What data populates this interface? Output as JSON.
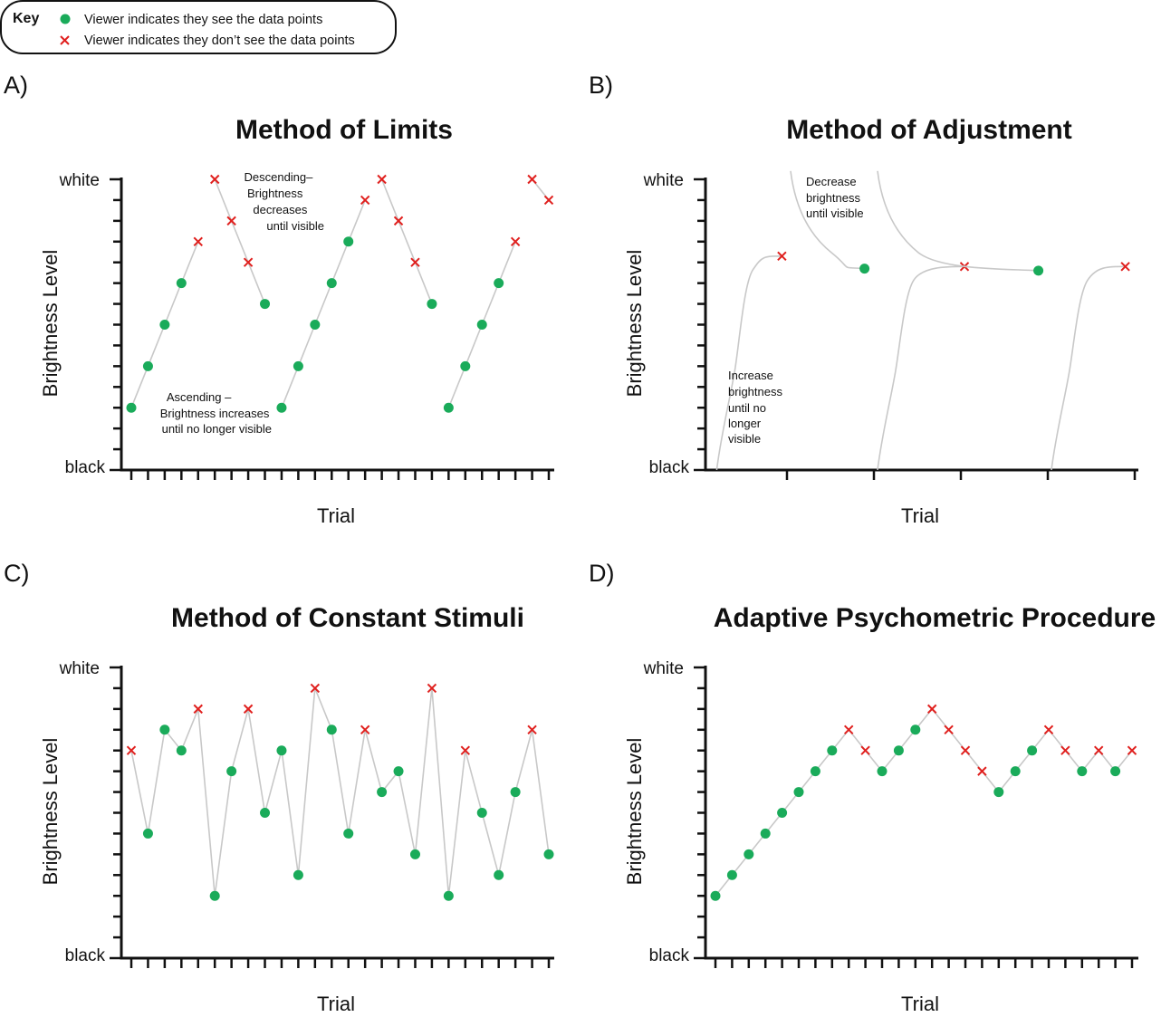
{
  "key": {
    "title": "Key",
    "seen_label": "Viewer indicates they see the data points",
    "unseen_label": "Viewer indicates they don’t see the data points"
  },
  "colors": {
    "seen": "#1aab5a",
    "unseen": "#e0201e",
    "line": "#c8c8c8",
    "axis": "#111111"
  },
  "chart_data": [
    {
      "panel": "A)",
      "title": "Method of Limits",
      "type": "line",
      "xlabel": "Trial",
      "ylabel": "Brightness Level",
      "y_top_label": "white",
      "y_bottom_label": "black",
      "x_ticks": 26,
      "y_ticks": 15,
      "ylim": [
        0,
        14
      ],
      "annotations": [
        {
          "id": "descending",
          "lines": [
            "Descending–",
            "Brightness",
            "decreases",
            "until visible"
          ]
        },
        {
          "id": "ascending",
          "lines": [
            "Ascending –",
            "Brightness increases",
            "until no longer visible"
          ]
        }
      ],
      "series": [
        {
          "points": [
            {
              "x": 1,
              "y": 3,
              "seen": true
            },
            {
              "x": 2,
              "y": 5,
              "seen": true
            },
            {
              "x": 3,
              "y": 7,
              "seen": true
            },
            {
              "x": 4,
              "y": 9,
              "seen": true
            },
            {
              "x": 5,
              "y": 11,
              "seen": false
            }
          ]
        },
        {
          "points": [
            {
              "x": 6,
              "y": 14,
              "seen": false
            },
            {
              "x": 7,
              "y": 12,
              "seen": false
            },
            {
              "x": 8,
              "y": 10,
              "seen": false
            },
            {
              "x": 9,
              "y": 8,
              "seen": true
            }
          ]
        },
        {
          "points": [
            {
              "x": 10,
              "y": 3,
              "seen": true
            },
            {
              "x": 11,
              "y": 5,
              "seen": true
            },
            {
              "x": 12,
              "y": 7,
              "seen": true
            },
            {
              "x": 13,
              "y": 9,
              "seen": true
            },
            {
              "x": 14,
              "y": 11,
              "seen": true
            },
            {
              "x": 15,
              "y": 13,
              "seen": false
            }
          ]
        },
        {
          "points": [
            {
              "x": 16,
              "y": 14,
              "seen": false
            },
            {
              "x": 17,
              "y": 12,
              "seen": false
            },
            {
              "x": 18,
              "y": 10,
              "seen": false
            },
            {
              "x": 19,
              "y": 8,
              "seen": true
            }
          ]
        },
        {
          "points": [
            {
              "x": 20,
              "y": 3,
              "seen": true
            },
            {
              "x": 21,
              "y": 5,
              "seen": true
            },
            {
              "x": 22,
              "y": 7,
              "seen": true
            },
            {
              "x": 23,
              "y": 9,
              "seen": true
            },
            {
              "x": 24,
              "y": 11,
              "seen": false
            }
          ]
        },
        {
          "points": [
            {
              "x": 25,
              "y": 14,
              "seen": false
            },
            {
              "x": 26,
              "y": 13,
              "seen": false
            }
          ]
        }
      ]
    },
    {
      "panel": "B)",
      "title": "Method of Adjustment",
      "type": "line",
      "xlabel": "Trial",
      "ylabel": "Brightness Level",
      "y_top_label": "white",
      "y_bottom_label": "black",
      "x_ticks": 5,
      "y_ticks": 15,
      "ylim": [
        0,
        14
      ],
      "annotations": [
        {
          "id": "decrease",
          "lines": [
            "Decrease",
            "brightness",
            "until visible"
          ]
        },
        {
          "id": "increase",
          "lines": [
            "Increase",
            "brightness",
            "until no",
            "longer",
            "visible"
          ]
        }
      ],
      "curves": [
        {
          "start": [
            0.15,
            0.0
          ],
          "end": [
            0.9,
            10.3
          ],
          "end_seen": false
        },
        {
          "start": [
            1.0,
            14.4
          ],
          "end": [
            1.85,
            9.7
          ],
          "end_seen": true
        },
        {
          "start": [
            2.0,
            0.0
          ],
          "end": [
            3.0,
            9.8
          ],
          "end_seen": false
        },
        {
          "start": [
            2.0,
            14.4
          ],
          "end": [
            3.85,
            9.6
          ],
          "end_seen": true
        },
        {
          "start": [
            4.0,
            0.0
          ],
          "end": [
            4.85,
            9.8
          ],
          "end_seen": false
        }
      ]
    },
    {
      "panel": "C)",
      "title": "Method of Constant Stimuli",
      "type": "line",
      "xlabel": "Trial",
      "ylabel": "Brightness Level",
      "y_top_label": "white",
      "y_bottom_label": "black",
      "x_ticks": 26,
      "y_ticks": 15,
      "ylim": [
        0,
        14
      ],
      "series": [
        {
          "points": [
            {
              "x": 1,
              "y": 10,
              "seen": false
            },
            {
              "x": 2,
              "y": 6,
              "seen": true
            },
            {
              "x": 3,
              "y": 11,
              "seen": true
            },
            {
              "x": 4,
              "y": 10,
              "seen": true
            },
            {
              "x": 5,
              "y": 12,
              "seen": false
            },
            {
              "x": 6,
              "y": 3,
              "seen": true
            },
            {
              "x": 7,
              "y": 9,
              "seen": true
            },
            {
              "x": 8,
              "y": 12,
              "seen": false
            },
            {
              "x": 9,
              "y": 7,
              "seen": true
            },
            {
              "x": 10,
              "y": 10,
              "seen": true
            },
            {
              "x": 11,
              "y": 4,
              "seen": true
            },
            {
              "x": 12,
              "y": 13,
              "seen": false
            },
            {
              "x": 13,
              "y": 11,
              "seen": true
            },
            {
              "x": 14,
              "y": 6,
              "seen": true
            },
            {
              "x": 15,
              "y": 11,
              "seen": false
            },
            {
              "x": 16,
              "y": 8,
              "seen": true
            },
            {
              "x": 17,
              "y": 9,
              "seen": true
            },
            {
              "x": 18,
              "y": 5,
              "seen": true
            },
            {
              "x": 19,
              "y": 13,
              "seen": false
            },
            {
              "x": 20,
              "y": 3,
              "seen": true
            },
            {
              "x": 21,
              "y": 10,
              "seen": false
            },
            {
              "x": 22,
              "y": 7,
              "seen": true
            },
            {
              "x": 23,
              "y": 4,
              "seen": true
            },
            {
              "x": 24,
              "y": 8,
              "seen": true
            },
            {
              "x": 25,
              "y": 11,
              "seen": false
            },
            {
              "x": 26,
              "y": 5,
              "seen": true
            }
          ]
        }
      ]
    },
    {
      "panel": "D)",
      "title": "Adaptive Psychometric Procedure",
      "type": "line",
      "xlabel": "Trial",
      "ylabel": "Brightness Level",
      "y_top_label": "white",
      "y_bottom_label": "black",
      "x_ticks": 26,
      "y_ticks": 15,
      "ylim": [
        0,
        14
      ],
      "series": [
        {
          "points": [
            {
              "x": 1,
              "y": 3,
              "seen": true
            },
            {
              "x": 2,
              "y": 4,
              "seen": true
            },
            {
              "x": 3,
              "y": 5,
              "seen": true
            },
            {
              "x": 4,
              "y": 6,
              "seen": true
            },
            {
              "x": 5,
              "y": 7,
              "seen": true
            },
            {
              "x": 6,
              "y": 8,
              "seen": true
            },
            {
              "x": 7,
              "y": 9,
              "seen": true
            },
            {
              "x": 8,
              "y": 10,
              "seen": true
            },
            {
              "x": 9,
              "y": 11,
              "seen": false
            },
            {
              "x": 10,
              "y": 10,
              "seen": false
            },
            {
              "x": 11,
              "y": 9,
              "seen": true
            },
            {
              "x": 12,
              "y": 10,
              "seen": true
            },
            {
              "x": 13,
              "y": 11,
              "seen": true
            },
            {
              "x": 14,
              "y": 12,
              "seen": false
            },
            {
              "x": 15,
              "y": 11,
              "seen": false
            },
            {
              "x": 16,
              "y": 10,
              "seen": false
            },
            {
              "x": 17,
              "y": 9,
              "seen": false
            },
            {
              "x": 18,
              "y": 8,
              "seen": true
            },
            {
              "x": 19,
              "y": 9,
              "seen": true
            },
            {
              "x": 20,
              "y": 10,
              "seen": true
            },
            {
              "x": 21,
              "y": 11,
              "seen": false
            },
            {
              "x": 22,
              "y": 10,
              "seen": false
            },
            {
              "x": 23,
              "y": 9,
              "seen": true
            },
            {
              "x": 24,
              "y": 10,
              "seen": false
            },
            {
              "x": 25,
              "y": 9,
              "seen": true
            },
            {
              "x": 26,
              "y": 10,
              "seen": false
            }
          ]
        }
      ]
    }
  ]
}
